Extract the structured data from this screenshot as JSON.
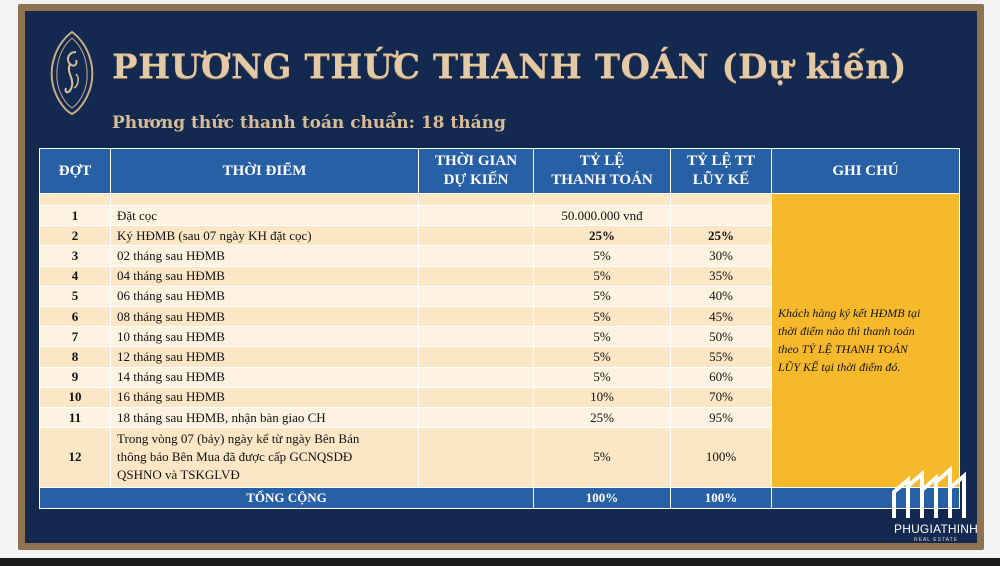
{
  "header": {
    "title": "PHƯƠNG THỨC THANH TOÁN (Dự kiến)",
    "subtitle": "Phương thức thanh toán chuẩn: 18 tháng"
  },
  "table": {
    "headers": {
      "dot": "ĐỢT",
      "thoi_diem": "THỜI ĐIỂM",
      "thoi_gian_line1": "THỜI GIAN",
      "thoi_gian_line2": "DỰ KIẾN",
      "ty_le_line1": "TỶ LỆ",
      "ty_le_line2": "THANH TOÁN",
      "luy_ke_line1": "TỶ LỆ TT",
      "luy_ke_line2": "LŨY KẾ",
      "ghi_chu": "GHI CHÚ"
    },
    "rows": [
      {
        "dot": "1",
        "thoi_diem": "Đặt cọc",
        "thoi_gian": "",
        "ty_le": "50.000.000 vnđ",
        "luy_ke": ""
      },
      {
        "dot": "2",
        "thoi_diem": "Ký HĐMB (sau 07 ngày KH đặt cọc)",
        "thoi_gian": "",
        "ty_le": "25%",
        "luy_ke": "25%"
      },
      {
        "dot": "3",
        "thoi_diem": "02 tháng sau HĐMB",
        "thoi_gian": "",
        "ty_le": "5%",
        "luy_ke": "30%"
      },
      {
        "dot": "4",
        "thoi_diem": "04 tháng sau HĐMB",
        "thoi_gian": "",
        "ty_le": "5%",
        "luy_ke": "35%"
      },
      {
        "dot": "5",
        "thoi_diem": "06 tháng sau HĐMB",
        "thoi_gian": "",
        "ty_le": "5%",
        "luy_ke": "40%"
      },
      {
        "dot": "6",
        "thoi_diem": "08 tháng sau HĐMB",
        "thoi_gian": "",
        "ty_le": "5%",
        "luy_ke": "45%"
      },
      {
        "dot": "7",
        "thoi_diem": "10 tháng sau HĐMB",
        "thoi_gian": "",
        "ty_le": "5%",
        "luy_ke": "50%"
      },
      {
        "dot": "8",
        "thoi_diem": "12 tháng sau HĐMB",
        "thoi_gian": "",
        "ty_le": "5%",
        "luy_ke": "55%"
      },
      {
        "dot": "9",
        "thoi_diem": "14 tháng sau HĐMB",
        "thoi_gian": "",
        "ty_le": "5%",
        "luy_ke": "60%"
      },
      {
        "dot": "10",
        "thoi_diem": "16 tháng sau HĐMB",
        "thoi_gian": "",
        "ty_le": "10%",
        "luy_ke": "70%"
      },
      {
        "dot": "11",
        "thoi_diem": "18 tháng sau HĐMB, nhận bàn giao CH",
        "thoi_gian": "",
        "ty_le": "25%",
        "luy_ke": "95%"
      },
      {
        "dot": "12",
        "thoi_diem_line1": "Trong vòng 07 (bảy) ngày kể từ ngày Bên Bán",
        "thoi_diem_line2": "thông báo Bên Mua đã được cấp GCNQSDĐ",
        "thoi_diem_line3": "QSHNO và TSKGLVĐ",
        "thoi_gian": "",
        "ty_le": "5%",
        "luy_ke": "100%"
      }
    ],
    "note_line1": "Khách hàng ký kết HĐMB tại",
    "note_line2": "thời điểm nào thì thanh toán",
    "note_line3": "theo TỶ LỆ THANH TOÁN",
    "note_line4": "LŨY KẾ tại thời điểm đó.",
    "total": {
      "label": "TỔNG CỘNG",
      "ty_le": "100%",
      "luy_ke": "100%"
    }
  },
  "brand": {
    "name": "PHUGIATHINH",
    "tagline": "REAL ESTATE"
  },
  "colors": {
    "panel": "#14294f",
    "header_blue": "#2860a5",
    "note_yellow": "#f6b92c",
    "title_gold": "#e4c9a6",
    "row_cream": "#fbe7c6"
  }
}
